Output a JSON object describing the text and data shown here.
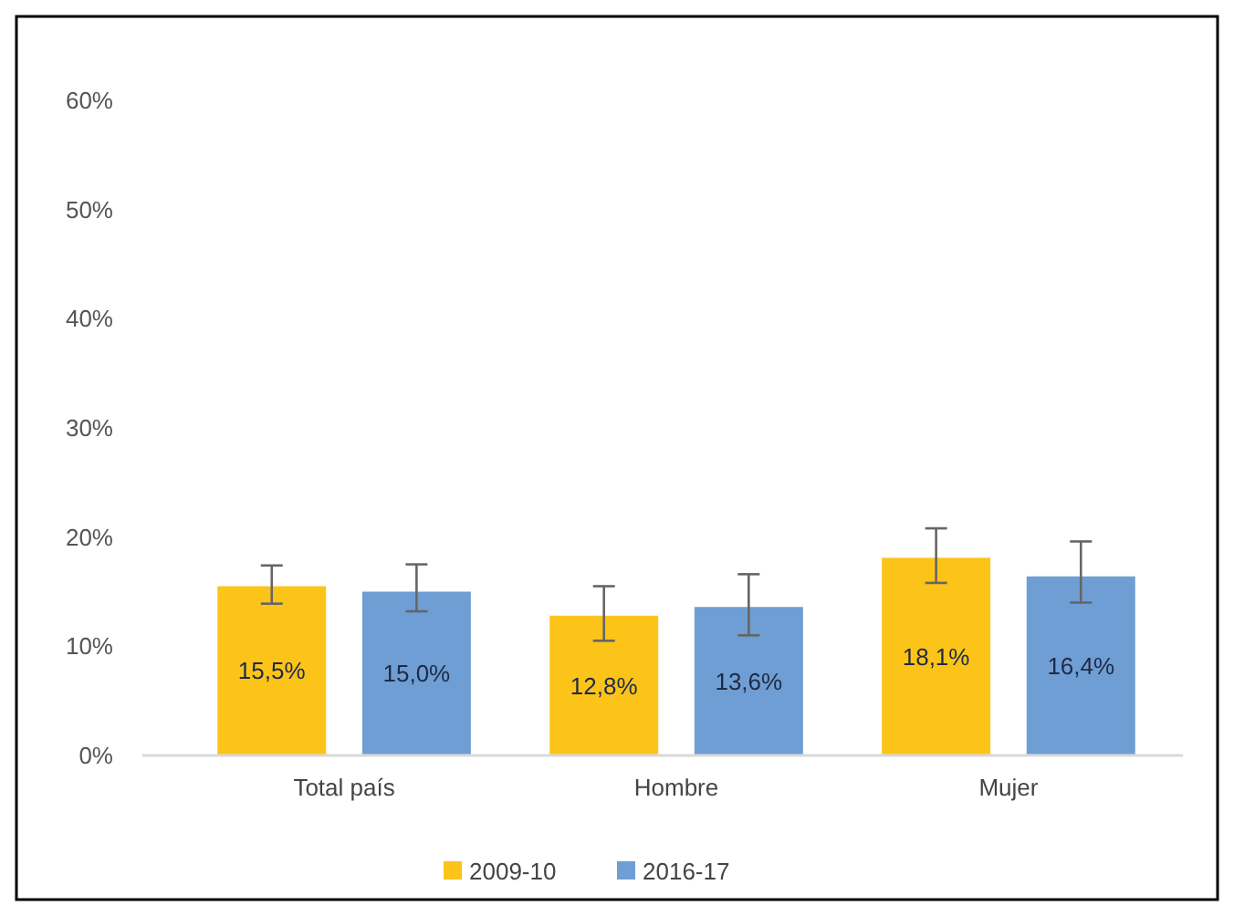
{
  "chart_data": {
    "type": "bar",
    "categories": [
      "Total país",
      "Hombre",
      "Mujer"
    ],
    "series": [
      {
        "name": "2009-10",
        "color": "#fcc419",
        "values": [
          15.5,
          12.8,
          18.1
        ],
        "errors": [
          [
            13.9,
            17.4
          ],
          [
            10.5,
            15.5
          ],
          [
            15.8,
            20.8
          ]
        ],
        "value_labels": [
          "15,5%",
          "12,8%",
          "18,1%"
        ]
      },
      {
        "name": "2016-17",
        "color": "#6f9ed4",
        "values": [
          15.0,
          13.6,
          16.4
        ],
        "errors": [
          [
            13.2,
            17.5
          ],
          [
            11.0,
            16.6
          ],
          [
            14.0,
            19.6
          ]
        ],
        "value_labels": [
          "15,0%",
          "13,6%",
          "16,4%"
        ]
      }
    ],
    "ylim": [
      0,
      60
    ],
    "yticks": [
      {
        "value": 0,
        "label": "0%"
      },
      {
        "value": 10,
        "label": "10%"
      },
      {
        "value": 20,
        "label": "20%"
      },
      {
        "value": 30,
        "label": "30%"
      },
      {
        "value": 40,
        "label": "40%"
      },
      {
        "value": 50,
        "label": "50%"
      },
      {
        "value": 60,
        "label": "60%"
      }
    ],
    "grid": false,
    "legend": "bottom"
  }
}
